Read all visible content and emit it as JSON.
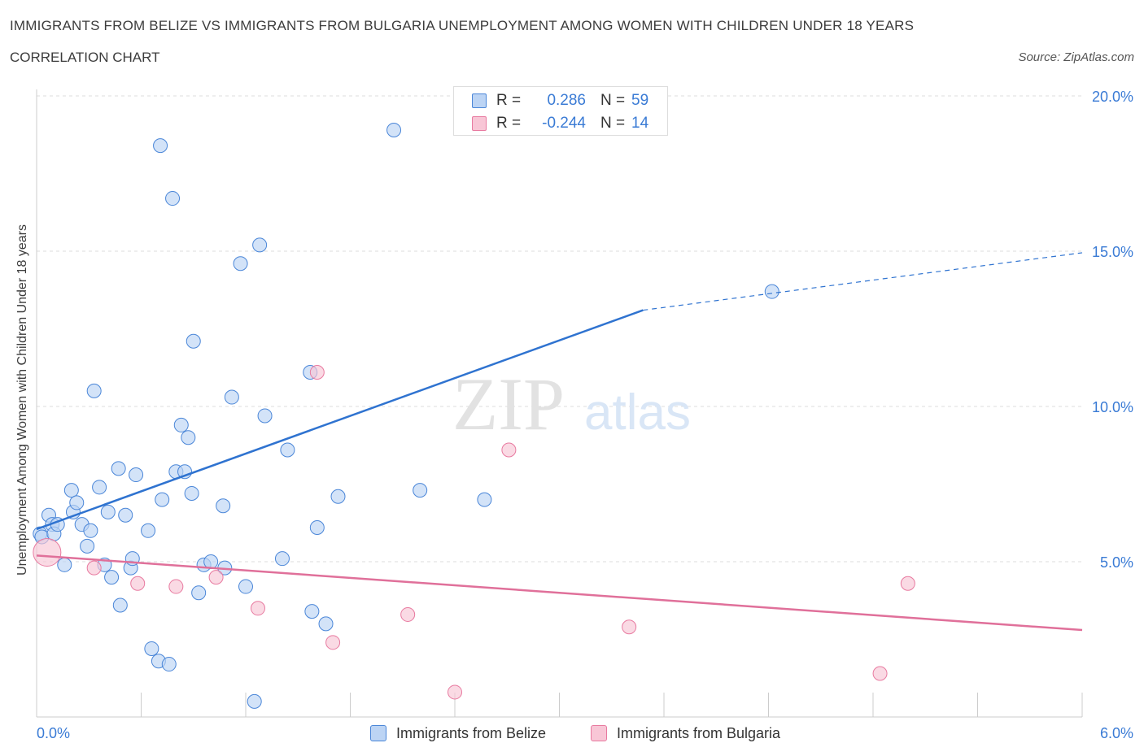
{
  "header": {
    "title": "IMMIGRANTS FROM BELIZE VS IMMIGRANTS FROM BULGARIA UNEMPLOYMENT AMONG WOMEN WITH CHILDREN UNDER 18 YEARS",
    "subtitle": "CORRELATION CHART",
    "source": "Source: ZipAtlas.com"
  },
  "watermark": {
    "zip": "ZIP",
    "atlas": "atlas"
  },
  "legend": {
    "rows": [
      {
        "r_label": "R =",
        "r_value": "0.286",
        "n_label": "N =",
        "n_value": "59"
      },
      {
        "r_label": "R =",
        "r_value": "-0.244",
        "n_label": "N =",
        "n_value": "14"
      }
    ]
  },
  "bottom_legend": {
    "belize": "Immigrants from Belize",
    "bulgaria": "Immigrants from Bulgaria"
  },
  "chart_data": {
    "type": "scatter",
    "title": "IMMIGRANTS FROM BELIZE VS IMMIGRANTS FROM BULGARIA UNEMPLOYMENT AMONG WOMEN WITH CHILDREN UNDER 18 YEARS",
    "xlabel": "",
    "ylabel": "Unemployment Among Women with Children Under 18 years",
    "xlim": [
      0,
      6
    ],
    "ylim": [
      0,
      20
    ],
    "x_tick_labels": [
      "0.0%",
      "6.0%"
    ],
    "y_ticks": [
      5,
      10,
      15,
      20
    ],
    "y_tick_labels": [
      "5.0%",
      "10.0%",
      "15.0%",
      "20.0%"
    ],
    "grid": true,
    "legend_position": "top-center",
    "colors": {
      "belize": "#4a86d8",
      "bulgaria": "#e87aa0",
      "belize_fill": "#bcd4f4",
      "bulgaria_fill": "#f8c6d6"
    },
    "series": [
      {
        "name": "Immigrants from Belize",
        "r": 0.286,
        "n": 59,
        "trend": {
          "x0": 0.0,
          "y0": 6.05,
          "x1": 3.48,
          "y1": 13.1,
          "dash_to_x": 6.0,
          "dash_to_y": 14.95
        },
        "points": [
          [
            0.02,
            5.9
          ],
          [
            0.03,
            5.8
          ],
          [
            0.07,
            6.5
          ],
          [
            0.09,
            6.2
          ],
          [
            0.1,
            5.9
          ],
          [
            0.12,
            6.2
          ],
          [
            0.16,
            4.9
          ],
          [
            0.2,
            7.3
          ],
          [
            0.21,
            6.6
          ],
          [
            0.23,
            6.9
          ],
          [
            0.26,
            6.2
          ],
          [
            0.29,
            5.5
          ],
          [
            0.31,
            6.0
          ],
          [
            0.33,
            10.5
          ],
          [
            0.36,
            7.4
          ],
          [
            0.39,
            4.9
          ],
          [
            0.41,
            6.6
          ],
          [
            0.43,
            4.5
          ],
          [
            0.47,
            8.0
          ],
          [
            0.48,
            3.6
          ],
          [
            0.51,
            6.5
          ],
          [
            0.54,
            4.8
          ],
          [
            0.55,
            5.1
          ],
          [
            0.57,
            7.8
          ],
          [
            0.64,
            6.0
          ],
          [
            0.66,
            2.2
          ],
          [
            0.7,
            1.8
          ],
          [
            0.71,
            18.4
          ],
          [
            0.72,
            7.0
          ],
          [
            0.76,
            1.7
          ],
          [
            0.78,
            16.7
          ],
          [
            0.8,
            7.9
          ],
          [
            0.83,
            9.4
          ],
          [
            0.85,
            7.9
          ],
          [
            0.87,
            9.0
          ],
          [
            0.89,
            7.2
          ],
          [
            0.9,
            12.1
          ],
          [
            0.93,
            4.0
          ],
          [
            0.96,
            4.9
          ],
          [
            1.0,
            5.0
          ],
          [
            1.07,
            6.8
          ],
          [
            1.08,
            4.8
          ],
          [
            1.12,
            10.3
          ],
          [
            1.17,
            14.6
          ],
          [
            1.2,
            4.2
          ],
          [
            1.25,
            0.5
          ],
          [
            1.28,
            15.2
          ],
          [
            1.31,
            9.7
          ],
          [
            1.41,
            5.1
          ],
          [
            1.44,
            8.6
          ],
          [
            1.57,
            11.1
          ],
          [
            1.58,
            3.4
          ],
          [
            1.61,
            6.1
          ],
          [
            1.66,
            3.0
          ],
          [
            1.73,
            7.1
          ],
          [
            2.05,
            18.9
          ],
          [
            2.2,
            7.3
          ],
          [
            2.57,
            7.0
          ],
          [
            4.22,
            13.7
          ]
        ]
      },
      {
        "name": "Immigrants from Bulgaria",
        "r": -0.244,
        "n": 14,
        "trend": {
          "x0": 0.0,
          "y0": 5.2,
          "x1": 6.0,
          "y1": 2.8
        },
        "points": [
          [
            0.06,
            5.3
          ],
          [
            0.33,
            4.8
          ],
          [
            0.58,
            4.3
          ],
          [
            0.8,
            4.2
          ],
          [
            1.03,
            4.5
          ],
          [
            1.27,
            3.5
          ],
          [
            1.61,
            11.1
          ],
          [
            1.7,
            2.4
          ],
          [
            2.13,
            3.3
          ],
          [
            2.4,
            0.8
          ],
          [
            2.71,
            8.6
          ],
          [
            3.4,
            2.9
          ],
          [
            4.84,
            1.4
          ],
          [
            5.0,
            4.3
          ]
        ]
      }
    ]
  }
}
